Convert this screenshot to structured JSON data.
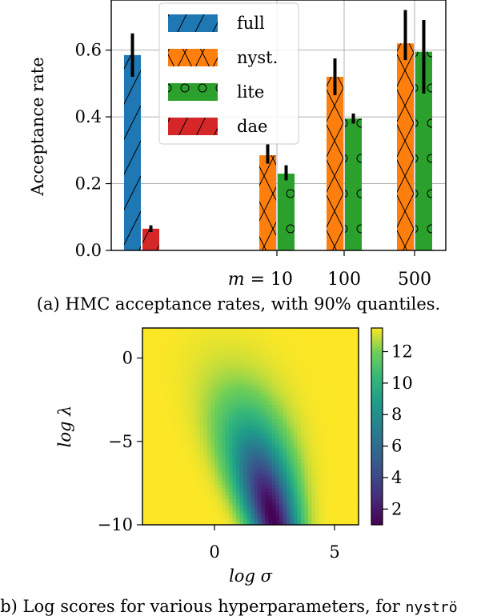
{
  "chart_data": [
    {
      "type": "bar",
      "ylabel": "Acceptance rate",
      "ylim": [
        0,
        0.75
      ],
      "yticks": [
        "0.0",
        "0.2",
        "0.4",
        "0.6"
      ],
      "xtick_labels": [
        "m = 10",
        "100",
        "500"
      ],
      "legend": {
        "placement": "top-center",
        "entries": [
          "full",
          "nyst.",
          "lite",
          "dae"
        ]
      },
      "colors": {
        "full": "#1f77b4",
        "nyst.": "#ff7f0e",
        "lite": "#2ca02c",
        "dae": "#d62728"
      },
      "hatches": {
        "full": "/",
        "nyst.": "x",
        "lite": "o",
        "dae": "/"
      },
      "grid": true,
      "groups": [
        {
          "label": "",
          "bars": [
            {
              "series": "full",
              "value": 0.585,
              "err": [
                0.52,
                0.65
              ]
            },
            {
              "series": "dae",
              "value": 0.065,
              "err": [
                0.055,
                0.075
              ]
            }
          ]
        },
        {
          "label": "m = 10",
          "bars": [
            {
              "series": "nyst.",
              "value": 0.285,
              "err": [
                0.26,
                0.32
              ]
            },
            {
              "series": "lite",
              "value": 0.23,
              "err": [
                0.21,
                0.255
              ]
            }
          ]
        },
        {
          "label": "100",
          "bars": [
            {
              "series": "nyst.",
              "value": 0.52,
              "err": [
                0.465,
                0.575
              ]
            },
            {
              "series": "lite",
              "value": 0.395,
              "err": [
                0.38,
                0.41
              ]
            }
          ]
        },
        {
          "label": "500",
          "bars": [
            {
              "series": "nyst.",
              "value": 0.62,
              "err": [
                0.57,
                0.72
              ]
            },
            {
              "series": "lite",
              "value": 0.595,
              "err": [
                0.47,
                0.69
              ]
            }
          ]
        }
      ]
    },
    {
      "type": "heatmap",
      "xlabel": "log σ",
      "ylabel": "log λ",
      "xlim": [
        -3,
        6
      ],
      "ylim": [
        -10,
        1.8
      ],
      "xticks": [
        "0",
        "5"
      ],
      "yticks": [
        "0",
        "−5",
        "−10"
      ],
      "colormap": "viridis",
      "colorbar": {
        "range": [
          1,
          13.5
        ],
        "ticks": [
          "2",
          "4",
          "6",
          "8",
          "10",
          "12"
        ]
      },
      "max_score": 13.5,
      "min_score": 1.0,
      "min_location": {
        "log_sigma": 2.5,
        "log_lambda": -9.5
      }
    }
  ],
  "captions": {
    "a": "(a) HMC acceptance rates, with 90% quantiles.",
    "b_prefix": "(b) Log scores for various hyperparameters, for ",
    "b_code": "nyströ"
  }
}
